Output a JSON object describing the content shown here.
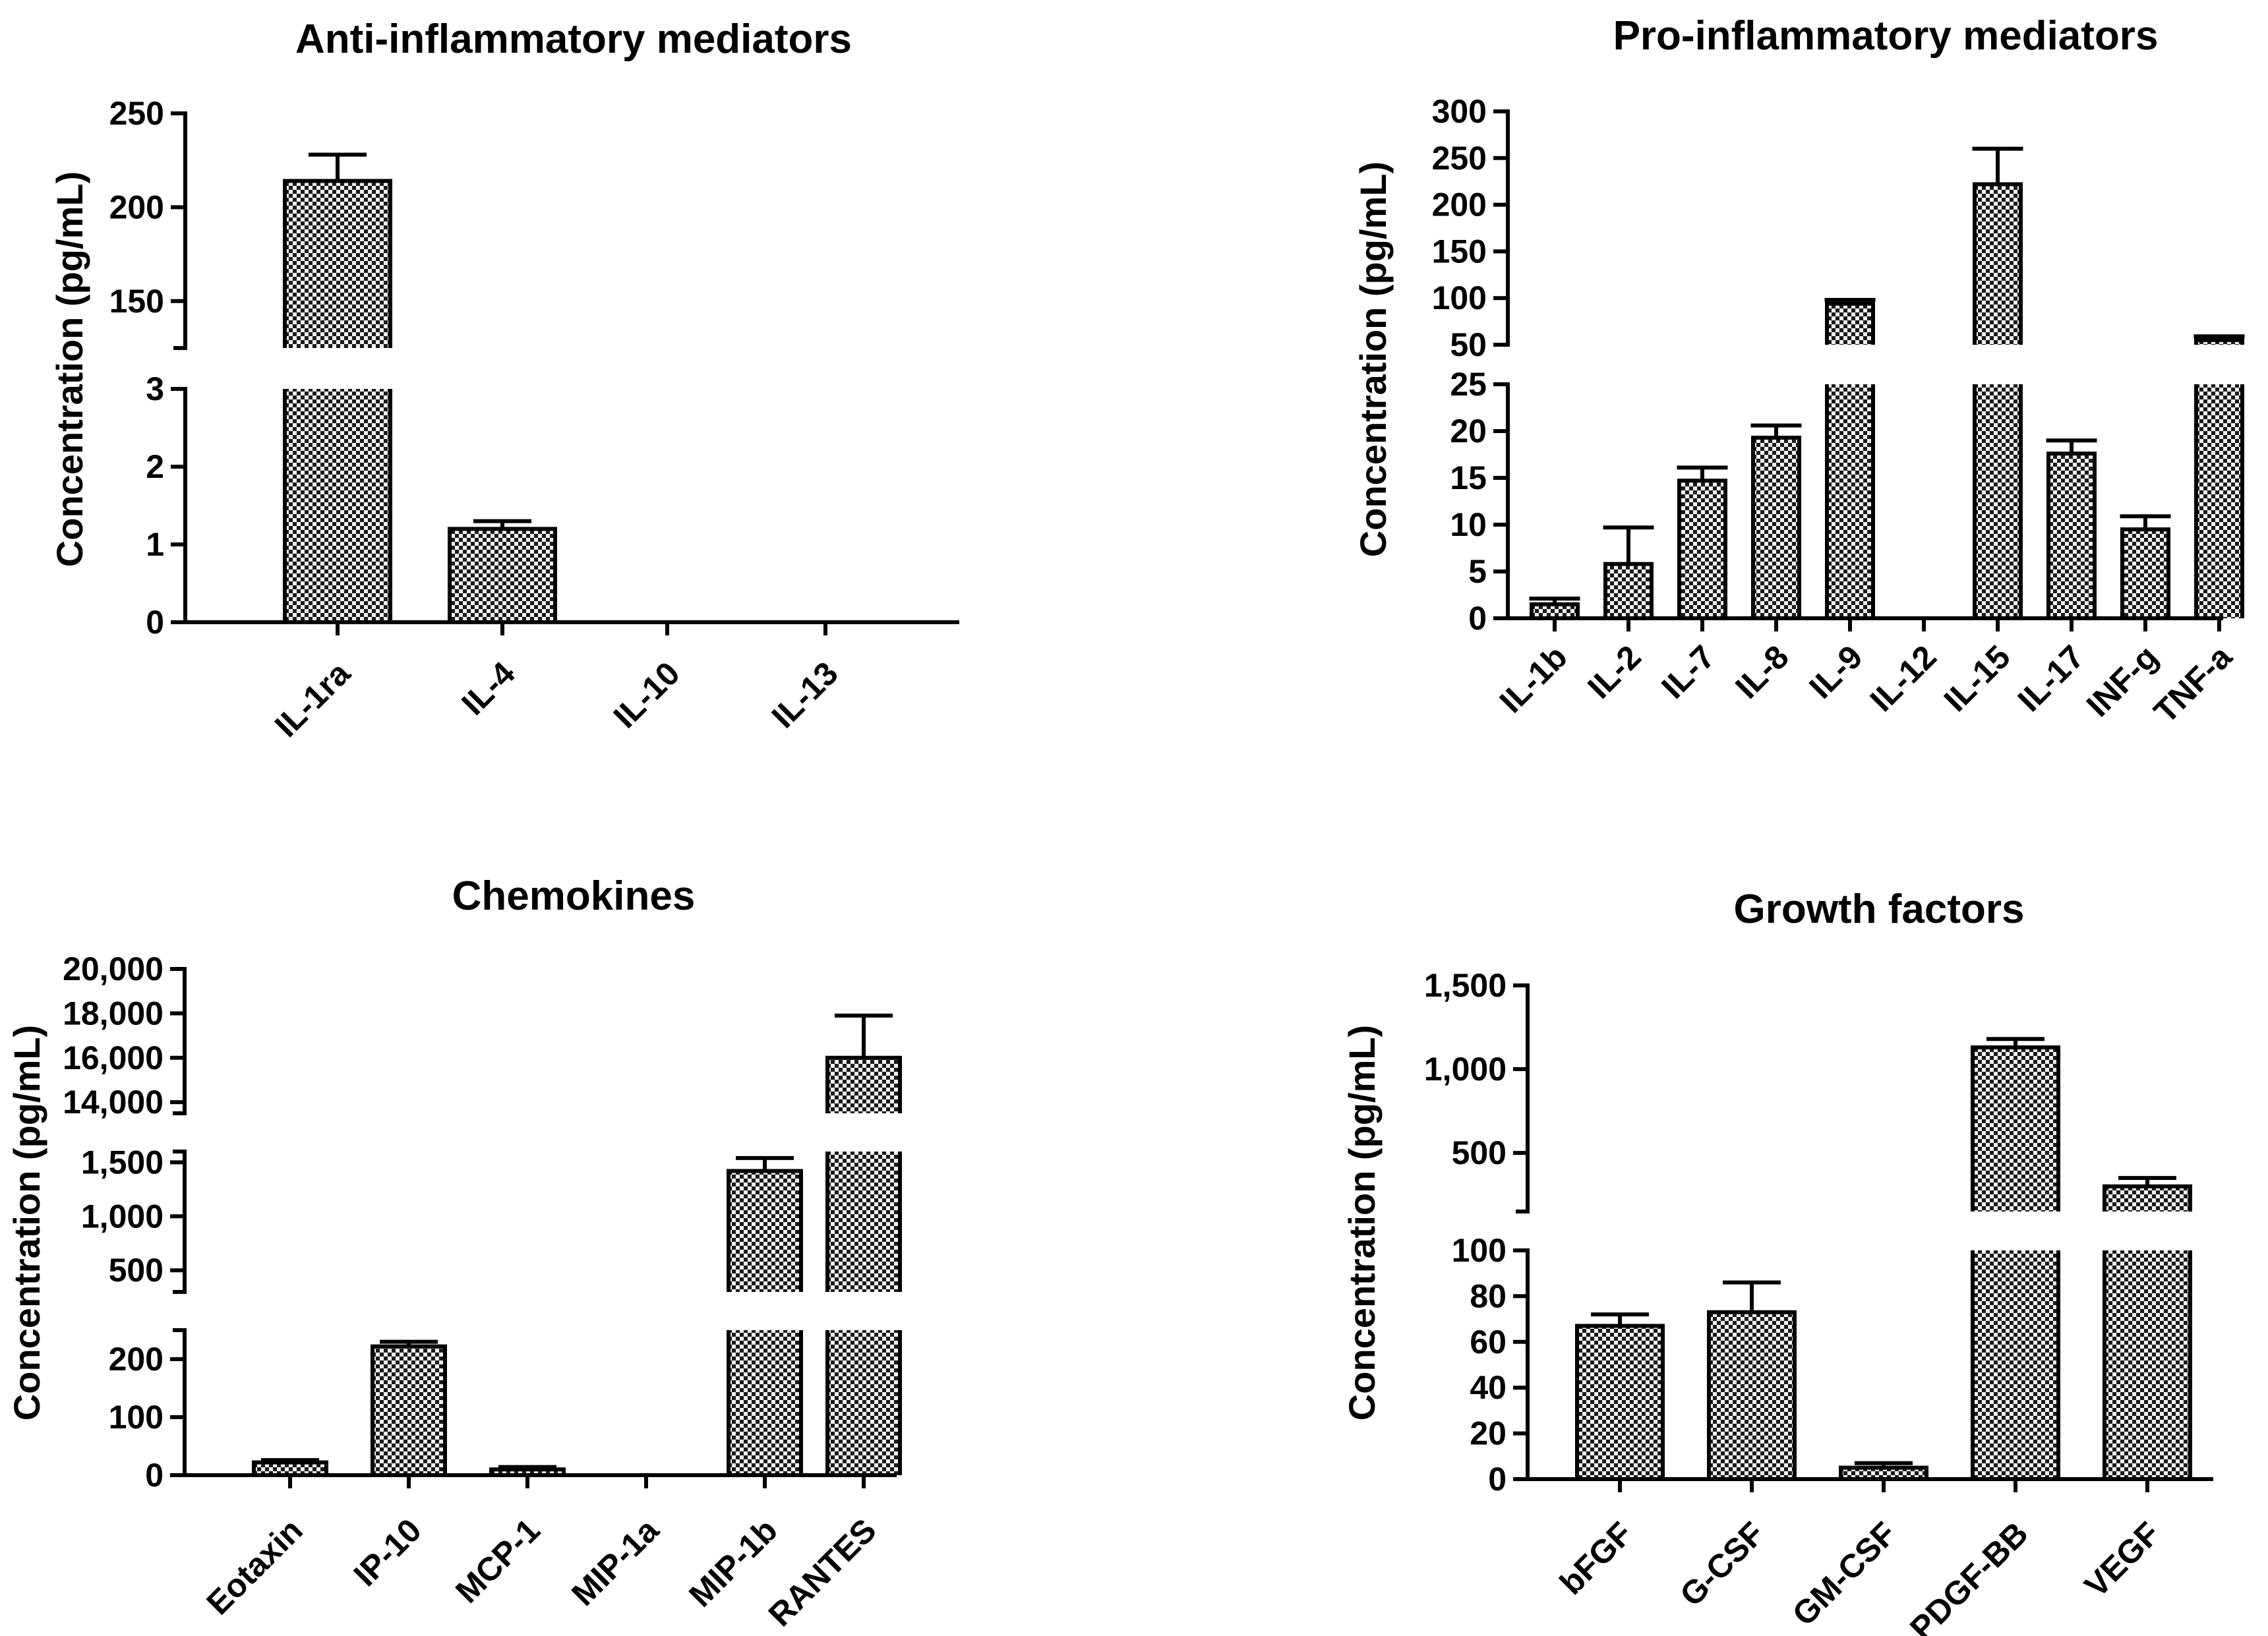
{
  "chart_data": [
    {
      "type": "bar",
      "title": "Anti-inflammatory mediators",
      "ylabel": "Concentration  (pg/mL)",
      "xlabel": "",
      "categories": [
        "IL-1ra",
        "IL-4",
        "IL-10",
        "IL-13"
      ],
      "values": [
        214,
        1.2,
        0,
        0
      ],
      "errors": [
        14,
        0.1,
        0,
        0
      ],
      "axis_breaks": [
        {
          "range": [
            0,
            3
          ],
          "ticks": [
            0,
            1,
            2,
            3
          ],
          "tick_labels": [
            "0",
            "1",
            "2",
            "3"
          ]
        },
        {
          "range": [
            125,
            250
          ],
          "ticks": [
            150,
            200,
            250
          ],
          "tick_labels": [
            "150",
            "200",
            "250"
          ]
        }
      ],
      "bar_pattern": "checkered",
      "grid": false,
      "legend": "none"
    },
    {
      "type": "bar",
      "title": "Pro-inflammatory mediators",
      "ylabel": "Concentration  (pg/mL)",
      "xlabel": "",
      "categories": [
        "IL-1b",
        "IL-2",
        "IL-7",
        "IL-8",
        "IL-9",
        "IL-12",
        "IL-15",
        "IL-17",
        "INF-g",
        "TNF-a"
      ],
      "values": [
        1.5,
        5.8,
        14.7,
        19.3,
        94,
        0,
        222,
        17.6,
        9.5,
        55
      ],
      "errors": [
        0.6,
        3.9,
        1.4,
        1.3,
        4,
        0,
        38,
        1.4,
        1.4,
        4
      ],
      "axis_breaks": [
        {
          "range": [
            0,
            25
          ],
          "ticks": [
            0,
            5,
            10,
            15,
            20,
            25
          ],
          "tick_labels": [
            "0",
            "5",
            "10",
            "15",
            "20",
            "25"
          ]
        },
        {
          "range": [
            50,
            300
          ],
          "ticks": [
            50,
            100,
            150,
            200,
            250,
            300
          ],
          "tick_labels": [
            "50",
            "100",
            "150",
            "200",
            "250",
            "300"
          ]
        }
      ],
      "bar_pattern": "checkered",
      "grid": false,
      "legend": "none"
    },
    {
      "type": "bar",
      "title": "Chemokines",
      "ylabel": "Concentration  (pg/mL)",
      "xlabel": "",
      "categories": [
        "Eotaxin",
        "IP-10",
        "MCP-1",
        "MIP-1a",
        "MIP-1b",
        "RANTES"
      ],
      "values": [
        22,
        222,
        10,
        0,
        1420,
        16000
      ],
      "errors": [
        4,
        8,
        4,
        0,
        120,
        1900
      ],
      "axis_breaks": [
        {
          "range": [
            0,
            250
          ],
          "ticks": [
            0,
            100,
            200
          ],
          "tick_labels": [
            "0",
            "100",
            "200"
          ]
        },
        {
          "range": [
            300,
            1600
          ],
          "ticks": [
            500,
            1000,
            1500
          ],
          "tick_labels": [
            "500",
            "1,000",
            "1,500"
          ]
        },
        {
          "range": [
            13500,
            20000
          ],
          "ticks": [
            14000,
            16000,
            18000,
            20000
          ],
          "tick_labels": [
            "14,000",
            "16,000",
            "18,000",
            "20,000"
          ]
        }
      ],
      "bar_pattern": "checkered",
      "grid": false,
      "legend": "none"
    },
    {
      "type": "bar",
      "title": "Growth factors",
      "ylabel": "Concentration  (pg/mL)",
      "xlabel": "",
      "categories": [
        "bFGF",
        "G-CSF",
        "GM-CSF",
        "PDGF-BB",
        "VEGF"
      ],
      "values": [
        67,
        73,
        5,
        1130,
        300
      ],
      "errors": [
        5,
        13,
        2,
        50,
        50
      ],
      "axis_breaks": [
        {
          "range": [
            0,
            100
          ],
          "ticks": [
            0,
            20,
            40,
            60,
            80,
            100
          ],
          "tick_labels": [
            "0",
            "20",
            "40",
            "60",
            "80",
            "100"
          ]
        },
        {
          "range": [
            150,
            1500
          ],
          "ticks": [
            500,
            1000,
            1500
          ],
          "tick_labels": [
            "500",
            "1,000",
            "1,500"
          ]
        }
      ],
      "bar_pattern": "checkered",
      "grid": false,
      "legend": "none"
    }
  ]
}
